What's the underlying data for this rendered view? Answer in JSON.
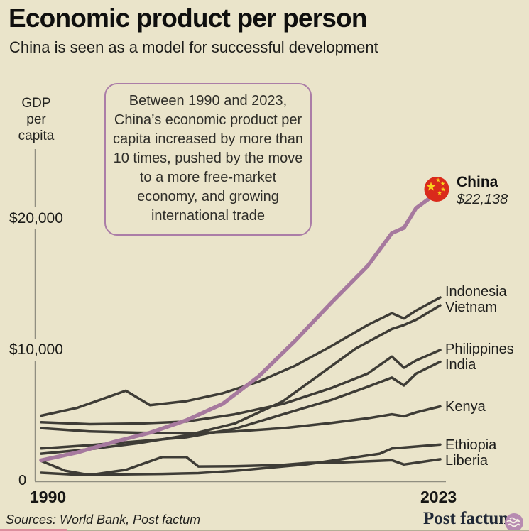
{
  "header": {
    "title": "Economic product per person",
    "subtitle": "China is seen as a model for successful development"
  },
  "annotation": {
    "text": "Between 1990 and 2023, China’s economic product per capita increased by more than 10 times, pushed by the move to a more free-market economy, and growing international trade"
  },
  "axis": {
    "ylabel": "GDP\nper\ncapita",
    "yticks": [
      "$20,000",
      "$10,000",
      "0"
    ],
    "xticks": [
      "1990",
      "2023"
    ]
  },
  "highlight": {
    "country": "China",
    "value_label": "$22,138"
  },
  "end_labels": [
    {
      "name": "Indonesia"
    },
    {
      "name": "Vietnam"
    },
    {
      "name": "Philippines"
    },
    {
      "name": "India"
    },
    {
      "name": "Kenya"
    },
    {
      "name": "Ethiopia"
    },
    {
      "name": "Liberia"
    }
  ],
  "footer": {
    "sources": "Sources: World Bank, Post factum",
    "brand": "Post factum"
  },
  "colors": {
    "background": "#eae4ca",
    "series_gray": "#3e3c36",
    "china_line": "#a6799e",
    "flag_red": "#da2a1b",
    "star_yellow": "#f8d21c",
    "axis": "#908e80",
    "annotation_border": "#ab7da7",
    "brand_navy": "#202836",
    "logo_pink": "#b78bb1",
    "footer_bar_pink": "#dd8f9e"
  },
  "chart_data": {
    "type": "line",
    "title": "Economic product per person",
    "subtitle": "China is seen as a model for successful development",
    "ylabel": "GDP per capita",
    "xlabel": "",
    "x_range": [
      1990,
      2023
    ],
    "ylim": [
      0,
      24000
    ],
    "yticks": [
      20000,
      10000,
      0
    ],
    "xticks": [
      1990,
      2023
    ],
    "grid": false,
    "legend_position": "end-of-line labels (right)",
    "highlight_series": "China",
    "highlight_end_value": 22138,
    "series": [
      {
        "name": "China",
        "color": "#a6799e",
        "points": [
          [
            1990,
            1600
          ],
          [
            1993,
            2200
          ],
          [
            1996,
            3000
          ],
          [
            1999,
            3700
          ],
          [
            2002,
            4650
          ],
          [
            2005,
            5900
          ],
          [
            2008,
            8000
          ],
          [
            2011,
            10700
          ],
          [
            2014,
            13600
          ],
          [
            2017,
            16400
          ],
          [
            2019,
            18900
          ],
          [
            2020,
            19300
          ],
          [
            2021,
            20800
          ],
          [
            2023,
            22138
          ]
        ]
      },
      {
        "name": "Indonesia",
        "points": [
          [
            1990,
            5000
          ],
          [
            1993,
            5600
          ],
          [
            1997,
            6900
          ],
          [
            1999,
            5800
          ],
          [
            2002,
            6100
          ],
          [
            2005,
            6700
          ],
          [
            2008,
            7600
          ],
          [
            2011,
            8800
          ],
          [
            2014,
            10300
          ],
          [
            2017,
            11900
          ],
          [
            2019,
            12800
          ],
          [
            2020,
            12400
          ],
          [
            2021,
            13000
          ],
          [
            2023,
            14000
          ]
        ]
      },
      {
        "name": "Vietnam",
        "points": [
          [
            1990,
            2100
          ],
          [
            1994,
            2450
          ],
          [
            1998,
            2900
          ],
          [
            2002,
            3500
          ],
          [
            2006,
            4400
          ],
          [
            2010,
            6100
          ],
          [
            2013,
            8100
          ],
          [
            2016,
            10100
          ],
          [
            2019,
            11600
          ],
          [
            2020,
            11900
          ],
          [
            2021,
            12300
          ],
          [
            2023,
            13400
          ]
        ]
      },
      {
        "name": "Philippines",
        "points": [
          [
            1990,
            4500
          ],
          [
            1994,
            4350
          ],
          [
            1998,
            4400
          ],
          [
            2002,
            4550
          ],
          [
            2006,
            5100
          ],
          [
            2010,
            5900
          ],
          [
            2014,
            7100
          ],
          [
            2017,
            8200
          ],
          [
            2019,
            9500
          ],
          [
            2020,
            8650
          ],
          [
            2021,
            9200
          ],
          [
            2023,
            10000
          ]
        ]
      },
      {
        "name": "India",
        "points": [
          [
            1990,
            2500
          ],
          [
            1994,
            2750
          ],
          [
            1998,
            3050
          ],
          [
            2002,
            3350
          ],
          [
            2006,
            4000
          ],
          [
            2010,
            5100
          ],
          [
            2014,
            6200
          ],
          [
            2017,
            7200
          ],
          [
            2019,
            7900
          ],
          [
            2020,
            7300
          ],
          [
            2021,
            8200
          ],
          [
            2023,
            9100
          ]
        ]
      },
      {
        "name": "Kenya",
        "points": [
          [
            1990,
            4050
          ],
          [
            1994,
            3800
          ],
          [
            1998,
            3700
          ],
          [
            2002,
            3650
          ],
          [
            2006,
            3800
          ],
          [
            2010,
            4050
          ],
          [
            2014,
            4450
          ],
          [
            2017,
            4800
          ],
          [
            2019,
            5100
          ],
          [
            2020,
            4950
          ],
          [
            2021,
            5250
          ],
          [
            2023,
            5700
          ]
        ]
      },
      {
        "name": "Ethiopia",
        "points": [
          [
            1990,
            650
          ],
          [
            1993,
            500
          ],
          [
            1996,
            520
          ],
          [
            2000,
            560
          ],
          [
            2003,
            620
          ],
          [
            2006,
            800
          ],
          [
            2009,
            1050
          ],
          [
            2012,
            1300
          ],
          [
            2015,
            1700
          ],
          [
            2018,
            2100
          ],
          [
            2019,
            2500
          ],
          [
            2021,
            2650
          ],
          [
            2023,
            2800
          ]
        ]
      },
      {
        "name": "Liberia",
        "points": [
          [
            1990,
            1550
          ],
          [
            1992,
            800
          ],
          [
            1994,
            480
          ],
          [
            1997,
            870
          ],
          [
            2000,
            1850
          ],
          [
            2002,
            1850
          ],
          [
            2003,
            1130
          ],
          [
            2006,
            1150
          ],
          [
            2010,
            1250
          ],
          [
            2012,
            1400
          ],
          [
            2015,
            1450
          ],
          [
            2019,
            1600
          ],
          [
            2020,
            1280
          ],
          [
            2023,
            1680
          ]
        ]
      }
    ]
  }
}
